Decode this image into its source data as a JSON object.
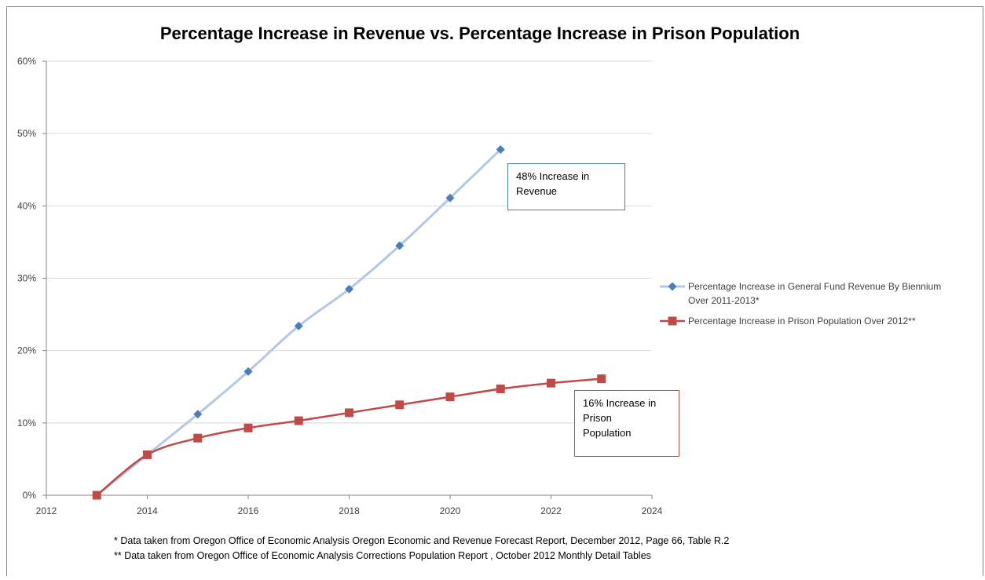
{
  "chart_data": {
    "type": "line",
    "title": "Percentage Increase in Revenue vs. Percentage Increase in Prison Population",
    "xlabel": "",
    "ylabel": "",
    "xlim": [
      2012,
      2024
    ],
    "ylim": [
      0,
      60
    ],
    "x_ticks": [
      "2012",
      "2014",
      "2016",
      "2018",
      "2020",
      "2022",
      "2024"
    ],
    "y_ticks": [
      "0%",
      "10%",
      "20%",
      "30%",
      "40%",
      "50%",
      "60%"
    ],
    "grid": "horizontal",
    "legend_position": "right",
    "series": [
      {
        "name_lines": [
          "Percentage Increase in General Fund Revenue By Biennium",
          "Over 2011-2013*"
        ],
        "marker": "diamond",
        "line_color": "#b4c7e7",
        "marker_color": "#4a7ebb",
        "x": [
          2013,
          2014,
          2015,
          2016,
          2017,
          2018,
          2019,
          2020,
          2021
        ],
        "y": [
          0,
          5.6,
          11.2,
          17.1,
          23.4,
          28.5,
          34.5,
          41.1,
          47.8
        ]
      },
      {
        "name_lines": [
          "Percentage Increase in Prison Population Over 2012**"
        ],
        "marker": "square",
        "line_color": "#be4b48",
        "marker_color": "#be4b48",
        "x": [
          2013,
          2014,
          2015,
          2016,
          2017,
          2018,
          2019,
          2020,
          2021,
          2022,
          2023
        ],
        "y": [
          0,
          5.6,
          7.9,
          9.3,
          10.3,
          11.4,
          12.5,
          13.6,
          14.7,
          15.5,
          16.1
        ]
      }
    ],
    "annotations": [
      {
        "lines": [
          "48% Increase in",
          "Revenue"
        ],
        "border_color": "#4a7ebb"
      },
      {
        "lines": [
          "16% Increase in",
          "Prison",
          "Population"
        ],
        "border_color": "#be4b48"
      }
    ],
    "footnotes": [
      "* Data taken from  Oregon Office of Economic Analysis  Oregon Economic and Revenue Forecast Report, December 2012, Page 66, Table R.2",
      "** Data taken from Oregon Office of Economic Analysis Corrections Population Report , October 2012 Monthly Detail Tables"
    ]
  }
}
